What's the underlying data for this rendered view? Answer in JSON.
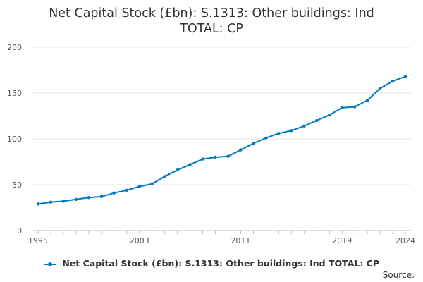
{
  "chart_data": {
    "type": "line",
    "title_lines": [
      "Net Capital Stock (£bn): S.1313: Other buildings: Ind",
      "TOTAL: CP"
    ],
    "x": [
      1995,
      1996,
      1997,
      1998,
      1999,
      2000,
      2001,
      2002,
      2003,
      2004,
      2005,
      2006,
      2007,
      2008,
      2009,
      2010,
      2011,
      2012,
      2013,
      2014,
      2015,
      2016,
      2017,
      2018,
      2019,
      2020,
      2021,
      2022,
      2023,
      2024
    ],
    "series": [
      {
        "name": "Net Capital Stock (£bn): S.1313: Other buildings: Ind TOTAL: CP",
        "color": "#0079c1",
        "values": [
          29,
          31,
          32,
          34,
          36,
          37,
          41,
          44,
          48,
          51,
          59,
          66,
          72,
          78,
          80,
          81,
          88,
          95,
          101,
          106,
          109,
          114,
          120,
          126,
          134,
          135,
          142,
          155,
          163,
          168
        ]
      }
    ],
    "x_ticks": [
      "1995",
      "2003",
      "2011",
      "2019",
      "2024"
    ],
    "y_ticks": [
      "0",
      "50",
      "100",
      "150",
      "200"
    ],
    "ylim": [
      0,
      200
    ],
    "xlim": [
      1995,
      2024
    ],
    "grid": "horizontal",
    "legend_position": "bottom",
    "source_label": "Source:"
  }
}
